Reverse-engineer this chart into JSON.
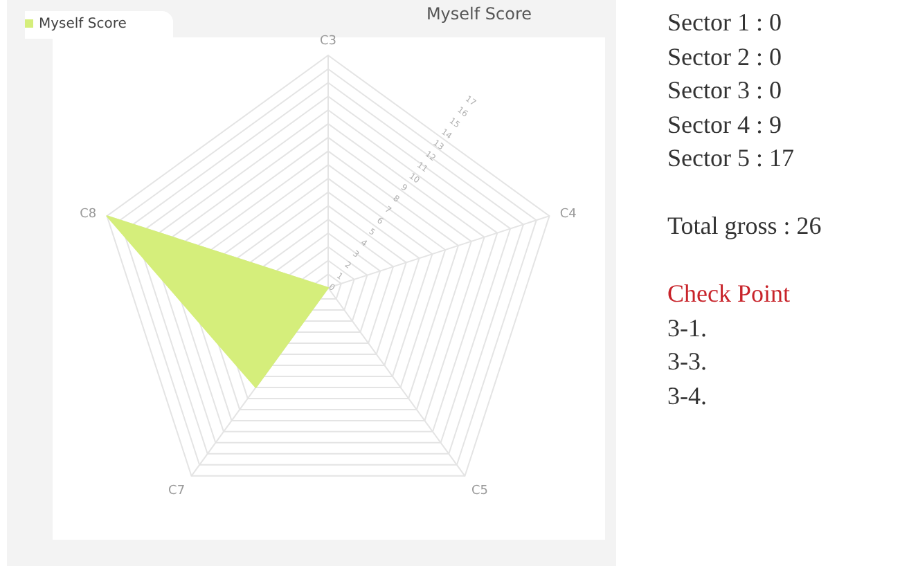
{
  "chart_data": {
    "type": "radar",
    "title": "Myself Score",
    "categories": [
      "C3",
      "C4",
      "C5",
      "C7",
      "C8"
    ],
    "series": [
      {
        "name": "Myself Score",
        "color": "#d5ee7b",
        "values": [
          0,
          0,
          0,
          9,
          17
        ]
      }
    ],
    "ylim": [
      0,
      17
    ],
    "yticks": [
      0,
      1,
      2,
      3,
      4,
      5,
      6,
      7,
      8,
      9,
      10,
      11,
      12,
      13,
      14,
      15,
      16,
      17
    ],
    "grid": true,
    "legend": "top left",
    "annotations": [
      "Sector 1 : 0",
      "Sector 2 : 0",
      "Sector 3 : 0",
      "Sector 4 : 9",
      "Sector 5 : 17",
      "Total gross : 26",
      "Check Point",
      "3-1.",
      "3-3.",
      "3-4."
    ]
  }
}
